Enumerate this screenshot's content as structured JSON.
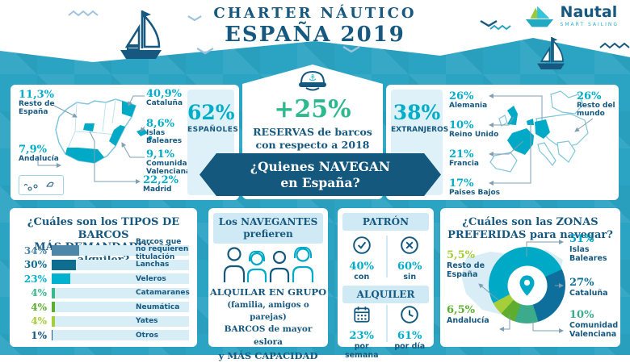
{
  "page": {
    "title_line1": "CHARTER NÁUTICO",
    "title_line2": "ESPAÑA 2019"
  },
  "logo": {
    "name": "Nautal",
    "tagline": "SMART SAILING"
  },
  "colors": {
    "background": "#2ba4c3",
    "navy": "#16587f",
    "cyan": "#00adc9",
    "green": "#2db98e",
    "light_box": "#def1f8",
    "panel_strip": "#cfeaf5",
    "banner": "#15587e"
  },
  "nationals": {
    "value": "62%",
    "label": "ESPAÑOLES",
    "regions": [
      {
        "value": "11,3%",
        "label": "Resto de España"
      },
      {
        "value": "40,9%",
        "label": "Cataluña"
      },
      {
        "value": "8,6%",
        "label": "Islas Baleares"
      },
      {
        "value": "9,1%",
        "label": "Comunidad Valenciana"
      },
      {
        "value": "22,2%",
        "label": "Madrid"
      },
      {
        "value": "7,9%",
        "label": "Andalucía"
      }
    ]
  },
  "reservations": {
    "value": "+25%",
    "line1": "RESERVAS de barcos",
    "line2": "con respecto a 2018"
  },
  "banner": {
    "line1": "¿Quienes NAVEGAN",
    "line2": "en España?"
  },
  "foreigners": {
    "value": "38%",
    "label": "EXTRANJEROS",
    "countries": [
      {
        "value": "26%",
        "label": "Alemania"
      },
      {
        "value": "10%",
        "label": "Reino Unido"
      },
      {
        "value": "21%",
        "label": "Francia"
      },
      {
        "value": "17%",
        "label": "Paises Bajos"
      },
      {
        "value": "26%",
        "label": "Resto del mundo"
      }
    ]
  },
  "preferences": {
    "title_line1": "Los NAVEGANTES",
    "title_line2": "prefieren",
    "line1": "ALQUILAR EN GRUPO",
    "line2": "(familia, amigos o parejas)",
    "line3": "BARCOS de mayor eslora",
    "line4": "y MÁS CAPACIDAD"
  },
  "patron": {
    "title": "PATRÓN",
    "with": {
      "value": "40%",
      "label": "con",
      "icon": "check-circle"
    },
    "without": {
      "value": "60%",
      "label": "sin",
      "icon": "x-circle"
    }
  },
  "alquiler": {
    "title": "ALQUILER",
    "week": {
      "value": "23%",
      "label": "por semana",
      "icon": "calendar"
    },
    "day": {
      "value": "61%",
      "label": "por día",
      "icon": "clock"
    }
  },
  "chart_data": [
    {
      "type": "bar",
      "title_line1": "¿Cuáles son los TIPOS DE BARCOS",
      "title_line2": "MÁS DEMANDADOS en alquiler?",
      "categories": [
        "Barcos que no requieren titulación",
        "Lanchas",
        "Veleros",
        "Catamaranes",
        "Neumática",
        "Yates",
        "Otros"
      ],
      "values": [
        34,
        30,
        23,
        4,
        4,
        4,
        1
      ],
      "value_labels": [
        "34%",
        "30%",
        "23%",
        "4%",
        "4%",
        "4%",
        "1%"
      ],
      "bar_colors": [
        "#4c86a8",
        "#0f6d90",
        "#00b2cf",
        "#39b98c",
        "#5dad2e",
        "#a6cd3a",
        "#15587e"
      ],
      "xlim": [
        0,
        100
      ],
      "unit": "%"
    },
    {
      "type": "pie",
      "title_line1": "¿Cuáles son las ZONAS",
      "title_line2": "PREFERIDAS para navegar?",
      "slices": [
        {
          "label": "Islas Baleares",
          "value": 51,
          "value_label": "51%",
          "color": "#00a9c6"
        },
        {
          "label": "Cataluña",
          "value": 27,
          "value_label": "27%",
          "color": "#0e6f9c"
        },
        {
          "label": "Comunidad Valenciana",
          "value": 10,
          "value_label": "10%",
          "color": "#3cab8c"
        },
        {
          "label": "Andalucía",
          "value": 6.5,
          "value_label": "6,5%",
          "color": "#5dad2e"
        },
        {
          "label": "Resto de España",
          "value": 5.5,
          "value_label": "5,5%",
          "color": "#a6cd3a"
        }
      ],
      "start_angle_deg": 242,
      "center_icon": "location-pin"
    }
  ]
}
